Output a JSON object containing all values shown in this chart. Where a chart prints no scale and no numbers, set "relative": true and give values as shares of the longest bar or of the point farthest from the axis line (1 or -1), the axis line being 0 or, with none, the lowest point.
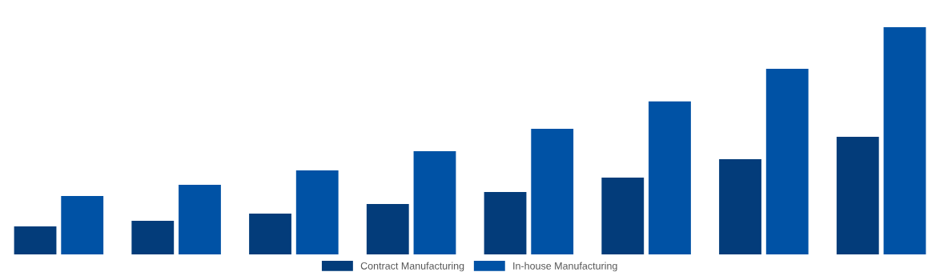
{
  "chart_data": {
    "type": "bar",
    "relative": true,
    "categories": [
      null,
      null,
      null,
      null,
      null,
      null,
      null,
      null
    ],
    "series": [
      {
        "name": "Contract Manufacturing",
        "color": "#033c7a",
        "values": [
          0.123,
          0.148,
          0.18,
          0.222,
          0.275,
          0.338,
          0.419,
          0.518
        ]
      },
      {
        "name": "In-house Manufacturing",
        "color": "#0052a5",
        "values": [
          0.257,
          0.306,
          0.37,
          0.454,
          0.553,
          0.673,
          0.817,
          1
        ]
      }
    ],
    "legend": "bottom",
    "grid": false
  }
}
